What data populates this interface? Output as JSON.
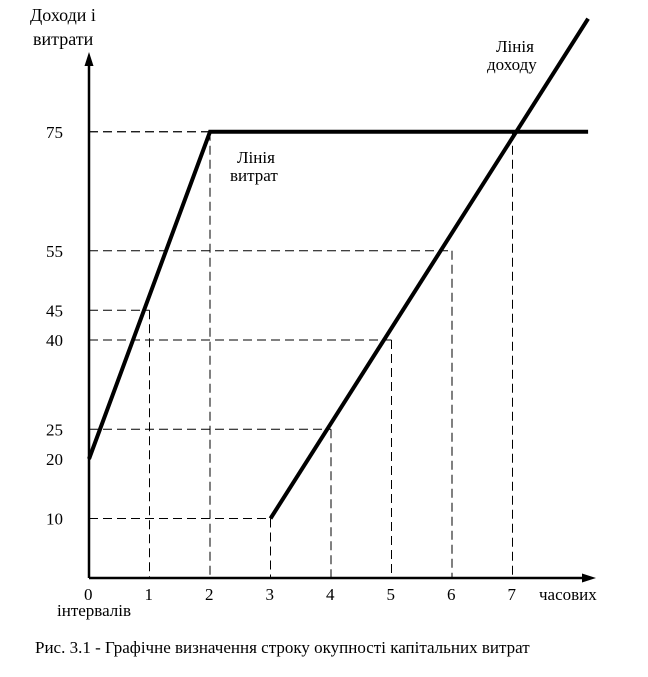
{
  "chart_data": {
    "type": "line",
    "ylabel_lines": [
      "Доходи і",
      "витрати"
    ],
    "xlabel_left": "інтервалів",
    "xlabel_right": "часових",
    "x_ticks": [
      "0",
      "1",
      "2",
      "3",
      "4",
      "5",
      "6",
      "7"
    ],
    "y_ticks": [
      "10",
      "20",
      "25",
      "40",
      "45",
      "55",
      "75"
    ],
    "series": [
      {
        "label_lines": [
          "Лінія",
          "витрат"
        ],
        "points": [
          [
            0,
            20
          ],
          [
            2,
            75
          ],
          [
            8.25,
            75
          ]
        ]
      },
      {
        "label_lines": [
          "Лінія",
          "доходу"
        ],
        "points": [
          [
            3,
            10
          ],
          [
            8.25,
            94
          ]
        ]
      }
    ],
    "guides": [
      {
        "x": 1,
        "y": 45
      },
      {
        "x": 2,
        "y": 75
      },
      {
        "x": 3,
        "y": 10
      },
      {
        "x": 4,
        "y": 25
      },
      {
        "x": 5,
        "y": 40
      },
      {
        "x": 6,
        "y": 55
      },
      {
        "x": 7,
        "y": 75
      }
    ]
  },
  "caption": "Рис. 3.1 - Графічне визначення строку окупності капітальних витрат"
}
